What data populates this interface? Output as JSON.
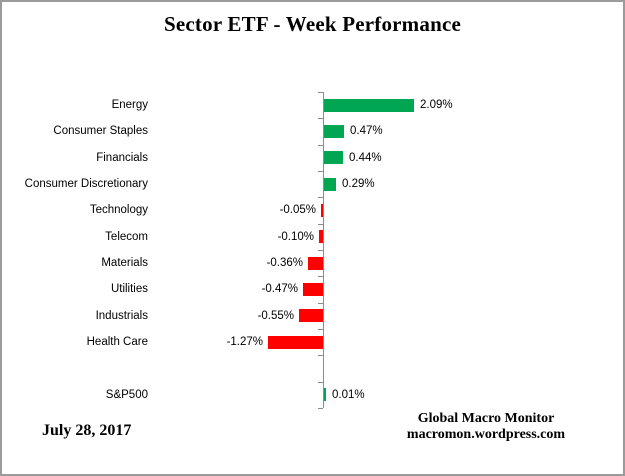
{
  "chart_data": {
    "type": "bar",
    "orientation": "horizontal",
    "title": "Sector ETF - Week Performance",
    "value_unit": "%",
    "categories": [
      "Energy",
      "Consumer Staples",
      "Financials",
      "Consumer Discretionary",
      "Technology",
      "Telecom",
      "Materials",
      "Utilities",
      "Industrials",
      "Health Care",
      "",
      "S&P500"
    ],
    "values": [
      2.09,
      0.47,
      0.44,
      0.29,
      -0.05,
      -0.1,
      -0.36,
      -0.47,
      -0.55,
      -1.27,
      null,
      0.01
    ],
    "value_labels": [
      "2.09%",
      "0.47%",
      "0.44%",
      "0.29%",
      "-0.05%",
      "-0.10%",
      "-0.36%",
      "-0.47%",
      "-0.55%",
      "-1.27%",
      "",
      "0.01%"
    ],
    "colors": {
      "positive": "#00A651",
      "negative": "#FF0000",
      "axis": "#8C8C8C"
    },
    "layout_hints": {
      "data_labels": "outside end",
      "value_axis": "hidden",
      "baseline": 0,
      "grid": "off",
      "legend": "none"
    }
  },
  "footer": {
    "date": "July 28, 2017",
    "attribution_line1": "Global Macro Monitor",
    "attribution_line2": "macromon.wordpress.com"
  }
}
